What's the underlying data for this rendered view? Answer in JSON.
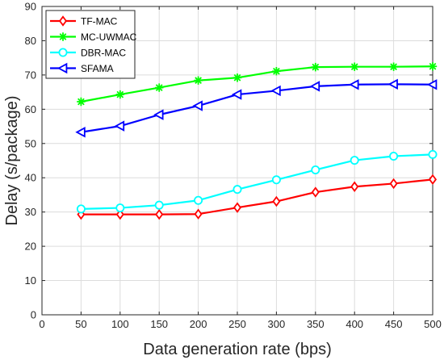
{
  "chart_data": {
    "type": "line",
    "xlabel": "Data generation rate (bps)",
    "ylabel": "Delay (s/package)",
    "xlim": [
      0,
      500
    ],
    "ylim": [
      0,
      90
    ],
    "xticks": [
      0,
      50,
      100,
      150,
      200,
      250,
      300,
      350,
      400,
      450,
      500
    ],
    "yticks": [
      0,
      10,
      20,
      30,
      40,
      50,
      60,
      70,
      80,
      90
    ],
    "grid": true,
    "legend_position": "top-left",
    "x": [
      50,
      100,
      150,
      200,
      250,
      300,
      350,
      400,
      450,
      500
    ],
    "series": [
      {
        "name": "TF-MAC",
        "color": "#ff0000",
        "marker": "diamond",
        "values": [
          29.3,
          29.3,
          29.3,
          29.4,
          31.3,
          33.1,
          35.8,
          37.4,
          38.3,
          39.5
        ]
      },
      {
        "name": "MC-UWMAC",
        "color": "#00ff00",
        "marker": "asterisk",
        "values": [
          62.2,
          64.3,
          66.3,
          68.4,
          69.2,
          71.1,
          72.3,
          72.4,
          72.4,
          72.5
        ]
      },
      {
        "name": "DBR-MAC",
        "color": "#00ffff",
        "marker": "circle",
        "values": [
          30.9,
          31.2,
          32.0,
          33.4,
          36.6,
          39.4,
          42.3,
          45.1,
          46.3,
          46.8
        ]
      },
      {
        "name": "SFAMA",
        "color": "#0000ff",
        "marker": "triangle-left",
        "values": [
          53.3,
          55.1,
          58.4,
          61.0,
          64.3,
          65.4,
          66.7,
          67.2,
          67.3,
          67.2
        ]
      }
    ]
  }
}
